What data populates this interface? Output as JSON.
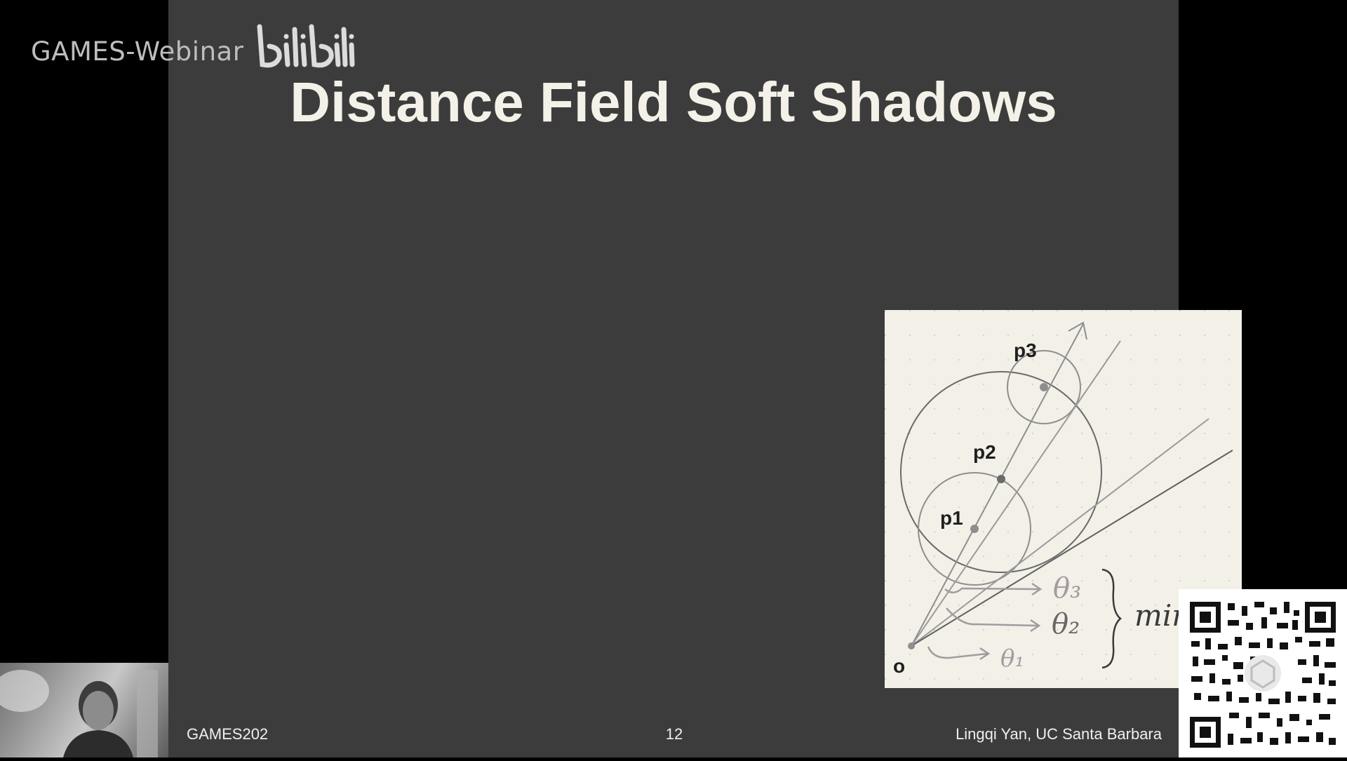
{
  "watermark": {
    "text": "GAMES-Webinar",
    "logo_text": "bilibili"
  },
  "slide": {
    "title": "Distance Field Soft Shadows",
    "diagram": {
      "labels": {
        "p1": "p1",
        "p2": "p2",
        "p3": "p3",
        "o": "o",
        "theta1": "θ₁",
        "theta2": "θ₂",
        "theta3": "θ₃",
        "min": "min"
      }
    },
    "footer": {
      "left": "GAMES202",
      "page_number": "12",
      "right": "Lingqi Yan, UC Santa Barbara"
    }
  },
  "colors": {
    "slide_bg": "#3c3c3c",
    "diagram_bg": "#f3f0e8",
    "title": "#f4f1e8",
    "ink": "#555555",
    "handwriting": "#8a7f84"
  },
  "icons": {
    "webcam": "presenter-webcam",
    "qr": "qr-code"
  }
}
